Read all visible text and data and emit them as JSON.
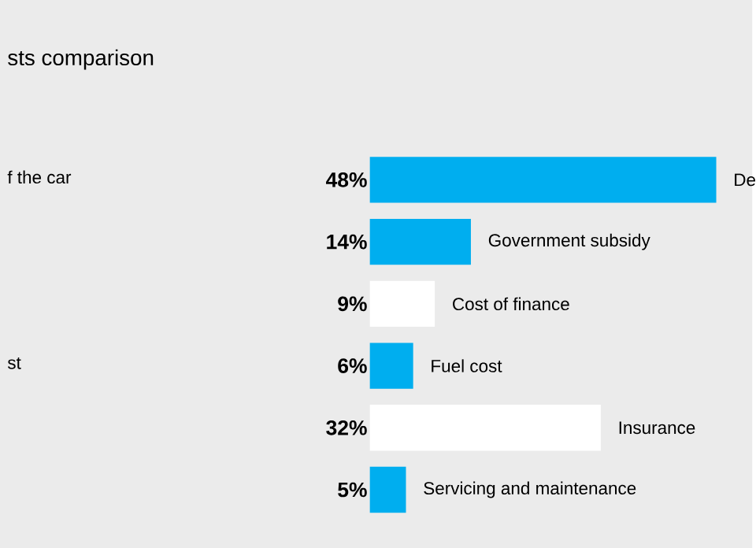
{
  "chart_data": {
    "type": "bar",
    "orientation": "horizontal",
    "title": "sts comparison",
    "categories": [
      "De",
      "Government subsidy",
      "Cost of finance",
      "Fuel cost",
      "Insurance",
      "Servicing and maintenance"
    ],
    "values": [
      48,
      14,
      9,
      6,
      32,
      5
    ],
    "value_labels": [
      "48%",
      "14%",
      "9%",
      "6%",
      "32%",
      "5%"
    ],
    "colors": [
      "#00aeef",
      "#00aeef",
      "#ffffff",
      "#00aeef",
      "#ffffff",
      "#00aeef"
    ],
    "annotations": [
      "f the car",
      "st"
    ]
  }
}
